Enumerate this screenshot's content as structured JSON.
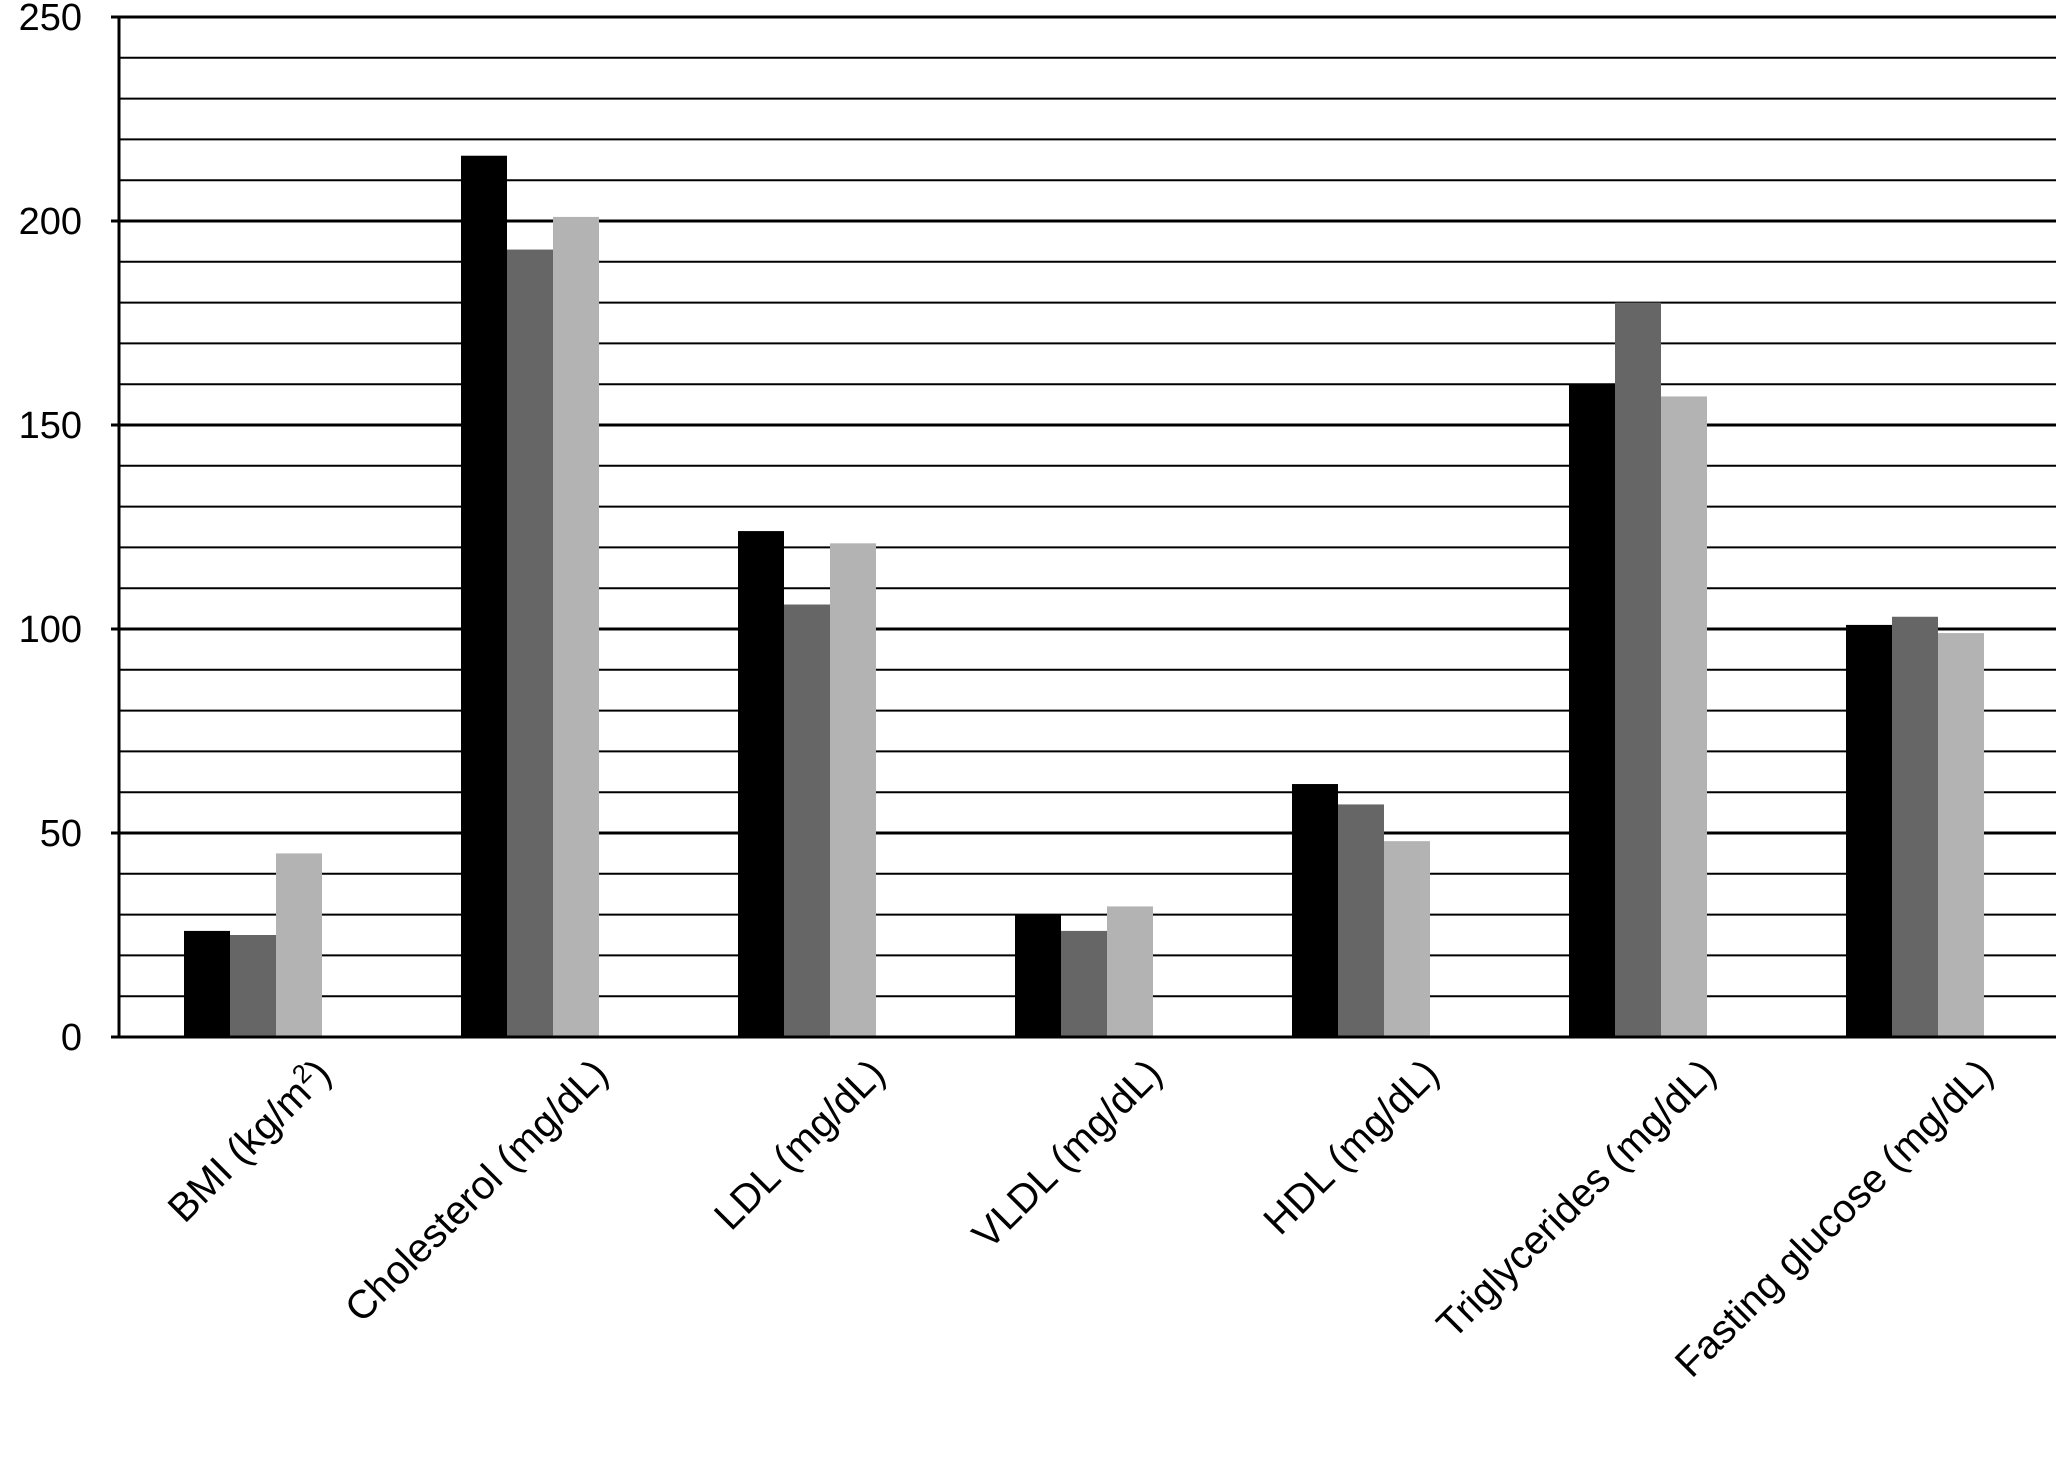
{
  "chart_data": {
    "type": "bar",
    "title": "",
    "xlabel": "",
    "ylabel": "",
    "ylim": [
      0,
      250
    ],
    "y_ticks": [
      0,
      50,
      100,
      150,
      200,
      250
    ],
    "minor_gridline_step": 10,
    "grid": true,
    "legend": "none",
    "categories": [
      "BMI (kg/m2)",
      "Cholesterol (mg/dL)",
      "LDL (mg/dL)",
      "VLDL (mg/dL)",
      "HDL (mg/dL)",
      "Triglycerides (mg/dL)",
      "Fasting glucose (mg/dL)"
    ],
    "series": [
      {
        "color": "#000000",
        "values": [
          26,
          216,
          124,
          30,
          62,
          160,
          101
        ]
      },
      {
        "color": "#666666",
        "values": [
          25,
          193,
          106,
          26,
          57,
          180,
          103
        ]
      },
      {
        "color": "#b3b3b3",
        "values": [
          45,
          201,
          121,
          32,
          48,
          157,
          99
        ]
      }
    ]
  }
}
